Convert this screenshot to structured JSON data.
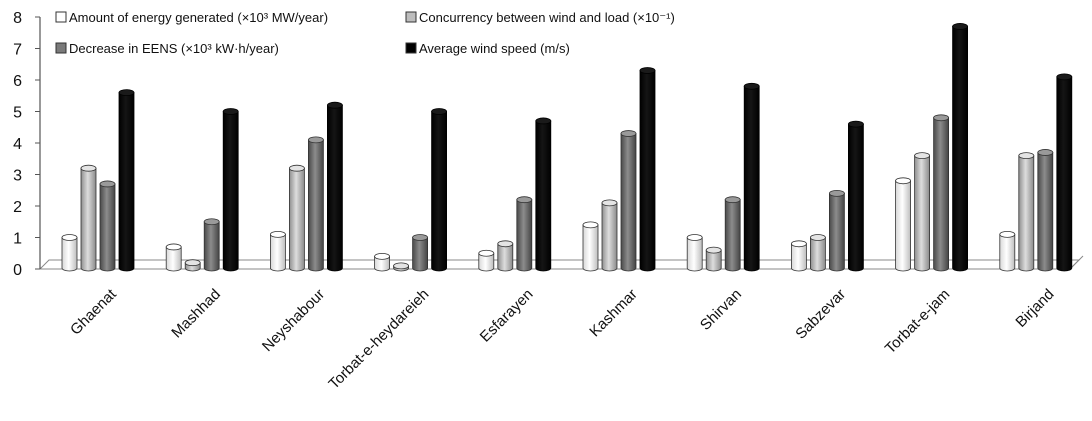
{
  "chart_data": {
    "type": "bar",
    "title": "",
    "xlabel": "",
    "ylabel": "",
    "ylim": [
      0,
      8
    ],
    "yticks": [
      "0",
      "1",
      "2",
      "3",
      "4",
      "5",
      "6",
      "7",
      "8"
    ],
    "grid": false,
    "legend_position": "top-left",
    "categories": [
      "Ghaenat",
      "Mashhad",
      "Neyshabour",
      "Torbat-e-heydareieh",
      "Esfarayen",
      "Kashmar",
      "Shirvan",
      "Sabzevar",
      "Torbat-e-jam",
      "Birjand"
    ],
    "series": [
      {
        "name": "Amount of energy generated (×10³ MW/year)",
        "color": "#ffffff",
        "values": [
          1.0,
          0.7,
          1.1,
          0.4,
          0.5,
          1.4,
          1.0,
          0.8,
          2.8,
          1.1
        ]
      },
      {
        "name": "Concurrency between wind and load (×10⁻¹)",
        "color": "#c8c8c8",
        "values": [
          3.2,
          0.2,
          3.2,
          0.1,
          0.8,
          2.1,
          0.6,
          1.0,
          3.6,
          3.6
        ]
      },
      {
        "name": "Decrease in EENS  (×10³ kW·h/year)",
        "color": "#7a7a7a",
        "values": [
          2.7,
          1.5,
          4.1,
          1.0,
          2.2,
          4.3,
          2.2,
          2.4,
          4.8,
          3.7
        ]
      },
      {
        "name": "Average wind speed (m/s)",
        "color": "#000000",
        "values": [
          5.6,
          5.0,
          5.2,
          5.0,
          4.7,
          6.3,
          5.8,
          4.6,
          7.7,
          6.1
        ]
      }
    ]
  }
}
